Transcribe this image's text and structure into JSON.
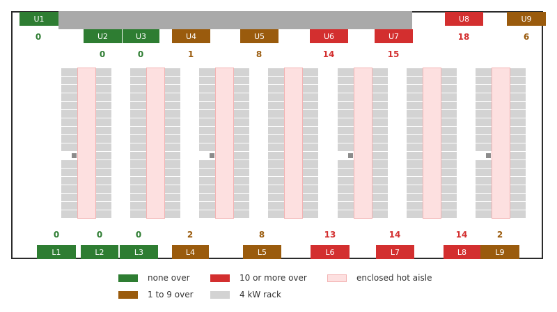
{
  "colors": {
    "none_over": "#2e7d32",
    "one_to_nine": "#9a5b0d",
    "ten_plus": "#d32f2f",
    "rack": "#d3d3d3",
    "hot_aisle_fill": "#fde0e0",
    "hot_aisle_border": "#f3b3b3"
  },
  "upper_units": [
    {
      "label": "U1",
      "count": "0",
      "level": "none"
    },
    {
      "label": "U2",
      "count": "0",
      "level": "none"
    },
    {
      "label": "U3",
      "count": "0",
      "level": "none"
    },
    {
      "label": "U4",
      "count": "1",
      "level": "mid"
    },
    {
      "label": "U5",
      "count": "8",
      "level": "mid"
    },
    {
      "label": "U6",
      "count": "14",
      "level": "high"
    },
    {
      "label": "U7",
      "count": "15",
      "level": "high"
    },
    {
      "label": "U8",
      "count": "18",
      "level": "high"
    },
    {
      "label": "U9",
      "count": "6",
      "level": "mid"
    }
  ],
  "lower_units": [
    {
      "label": "L1",
      "count": "0",
      "level": "none"
    },
    {
      "label": "L2",
      "count": "0",
      "level": "none"
    },
    {
      "label": "L3",
      "count": "0",
      "level": "none"
    },
    {
      "label": "L4",
      "count": "2",
      "level": "mid"
    },
    {
      "label": "L5",
      "count": "8",
      "level": "mid"
    },
    {
      "label": "L6",
      "count": "13",
      "level": "high"
    },
    {
      "label": "L7",
      "count": "14",
      "level": "high"
    },
    {
      "label": "L8",
      "count": "14",
      "level": "high"
    },
    {
      "label": "L9",
      "count": "2",
      "level": "mid"
    }
  ],
  "legend": {
    "none_over": "none over",
    "one_to_nine": "1 to 9 over",
    "ten_plus": "10 or more over",
    "rack": "4 kW rack",
    "hot_aisle": "enclosed hot aisle"
  }
}
